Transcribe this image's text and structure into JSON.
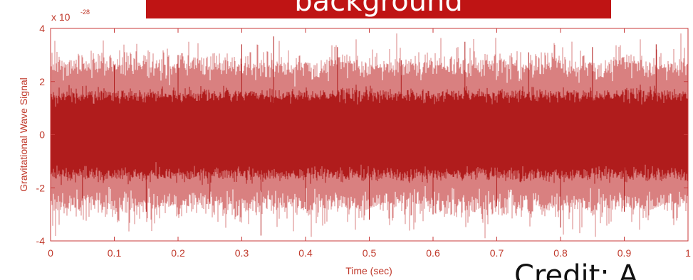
{
  "banner": {
    "text": "background"
  },
  "caption": {
    "text": "Credit: A"
  },
  "chart_data": {
    "type": "line",
    "title": "background",
    "xlabel": "Time (sec)",
    "ylabel": "Gravitational Wave Signal",
    "y_exponent_label": "x 10",
    "y_exponent": "-28",
    "xlim": [
      0,
      1
    ],
    "ylim": [
      -4,
      4
    ],
    "x_ticks": [
      "0",
      "0.1",
      "0.2",
      "0.3",
      "0.4",
      "0.5",
      "0.6",
      "0.7",
      "0.8",
      "0.9",
      "1"
    ],
    "y_ticks": [
      "-4",
      "-2",
      "0",
      "2",
      "4"
    ],
    "grid": false,
    "series": [
      {
        "color": "#b01c1c",
        "x": [
          0,
          0.05,
          0.1,
          0.15,
          0.2,
          0.25,
          0.3,
          0.33,
          0.35,
          0.4,
          0.45,
          0.5,
          0.55,
          0.6,
          0.65,
          0.7,
          0.75,
          0.8,
          0.85,
          0.9,
          0.95,
          1
        ],
        "y": [
          0.3,
          -2.4,
          2.6,
          -2.9,
          3.0,
          -2.6,
          3.4,
          -3.8,
          3.7,
          -2.8,
          3.3,
          -3.2,
          2.8,
          -3.0,
          3.5,
          -2.7,
          3.1,
          -3.5,
          3.3,
          -2.9,
          3.4,
          -2.8
        ]
      }
    ]
  }
}
